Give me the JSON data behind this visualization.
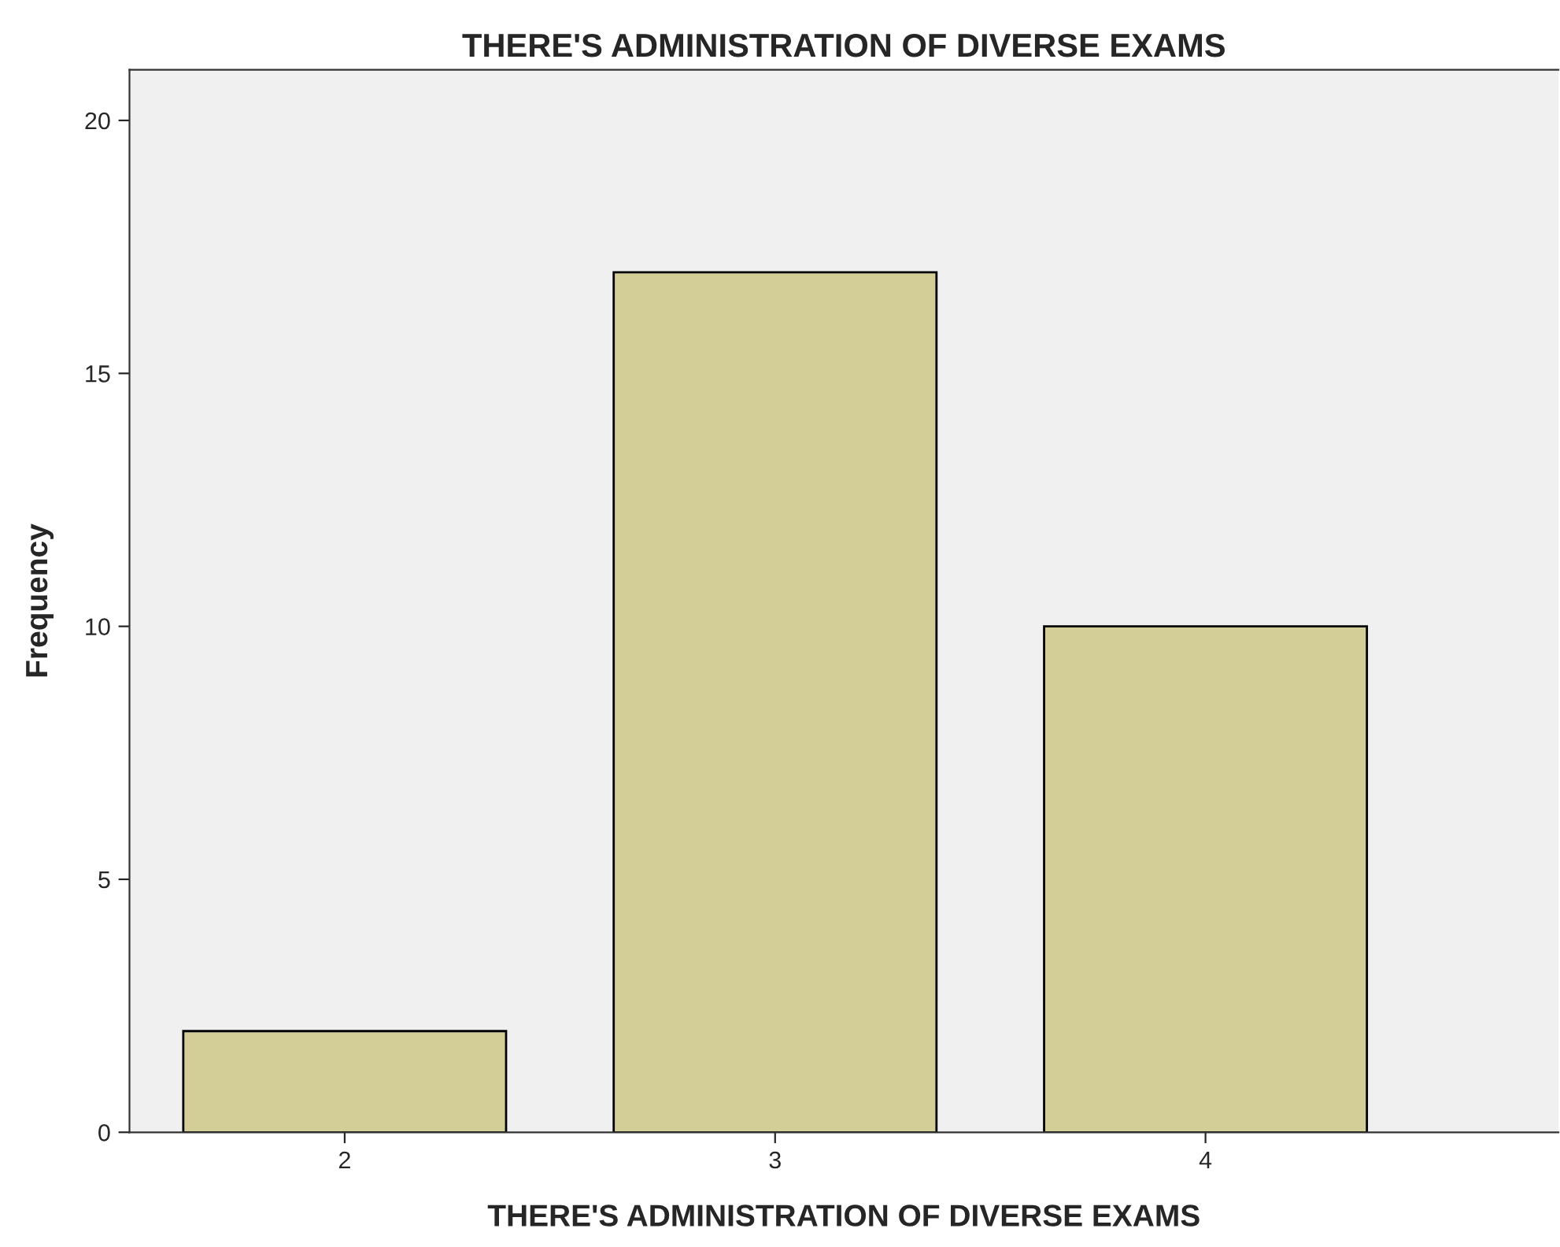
{
  "chart_data": {
    "type": "bar",
    "title": "THERE'S ADMINISTRATION OF DIVERSE EXAMS",
    "xlabel": "THERE'S ADMINISTRATION OF DIVERSE EXAMS",
    "ylabel": "Frequency",
    "categories": [
      "2",
      "3",
      "4"
    ],
    "series": [
      {
        "color": "#d3ce97",
        "values": [
          2,
          17,
          10
        ]
      }
    ],
    "ylim": [
      0,
      21
    ],
    "yticks": [
      0,
      5,
      10,
      15,
      20
    ],
    "grid": false
  }
}
